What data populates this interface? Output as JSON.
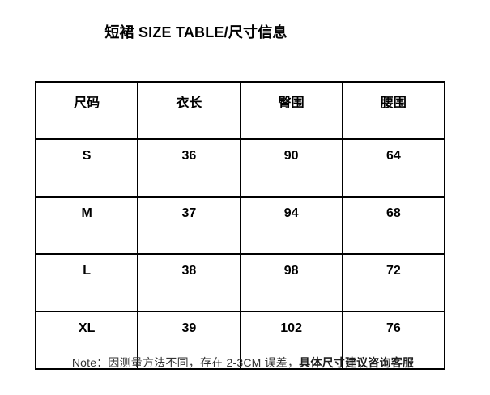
{
  "title": "短裙 SIZE TABLE/尺寸信息",
  "size_table": {
    "headers": [
      "尺码",
      "衣长",
      "臀围",
      "腰围"
    ],
    "rows": [
      {
        "size": "S",
        "length": "36",
        "hip": "90",
        "waist": "64"
      },
      {
        "size": "M",
        "length": "37",
        "hip": "94",
        "waist": "68"
      },
      {
        "size": "L",
        "length": "38",
        "hip": "98",
        "waist": "72"
      },
      {
        "size": "XL",
        "length": "39",
        "hip": "102",
        "waist": "76"
      }
    ]
  },
  "note": {
    "regular": "Note：因测量方法不同，存在 2-3CM 误差，",
    "bold": "具体尺寸建议咨询客服"
  },
  "colors": {
    "background": "#ffffff",
    "border": "#000000",
    "title_text": "#000000",
    "table_text": "#000000",
    "note_text": "#333333"
  }
}
